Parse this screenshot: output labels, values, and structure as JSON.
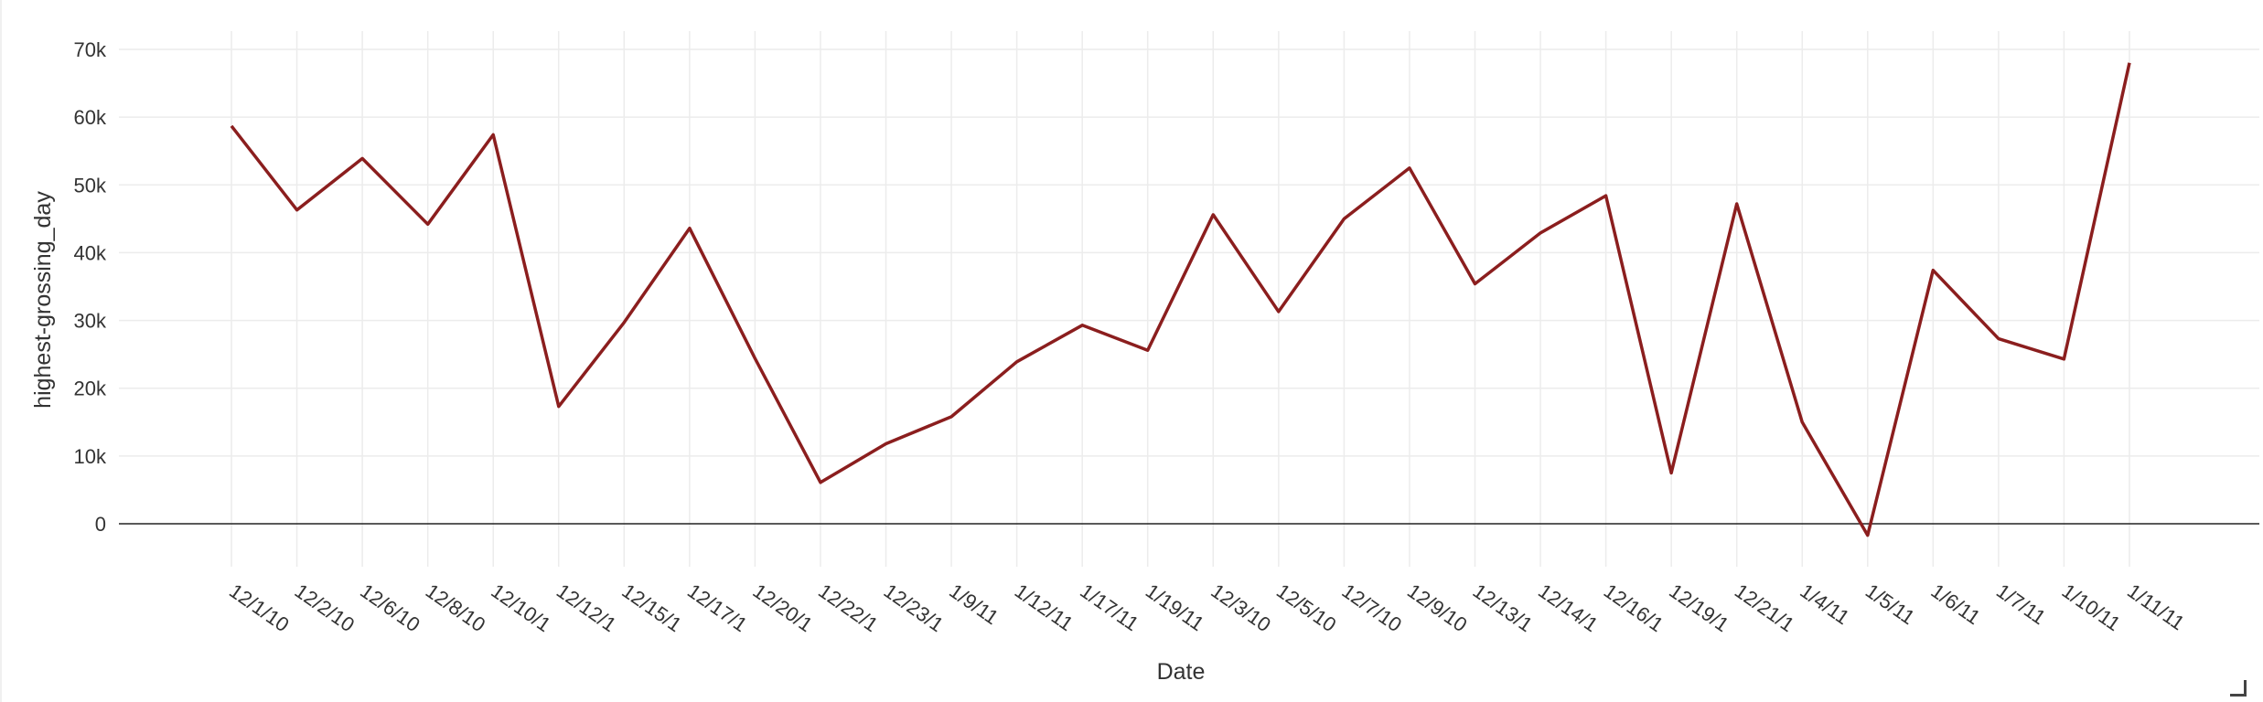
{
  "chart_data": {
    "type": "line",
    "title": "",
    "xlabel": "Date",
    "ylabel": "highest-grossing_day",
    "ylim": [
      -3000,
      72000
    ],
    "yticks": [
      0,
      10000,
      20000,
      30000,
      40000,
      50000,
      60000,
      70000
    ],
    "ytick_labels": [
      "0",
      "10k",
      "20k",
      "30k",
      "40k",
      "50k",
      "60k",
      "70k"
    ],
    "grid": true,
    "legend": "none",
    "line_color": "#8b1e1e",
    "categories": [
      "12/1/10",
      "12/2/10",
      "12/6/10",
      "12/8/10",
      "12/10/1",
      "12/12/1",
      "12/15/1",
      "12/17/1",
      "12/20/1",
      "12/22/1",
      "12/23/1",
      "1/9/11",
      "1/12/11",
      "1/17/11",
      "1/19/11",
      "12/3/10",
      "12/5/10",
      "12/7/10",
      "12/9/10",
      "12/13/1",
      "12/14/1",
      "12/16/1",
      "12/19/1",
      "12/21/1",
      "1/4/11",
      "1/5/11",
      "1/6/11",
      "1/7/11",
      "1/10/11",
      "1/11/11"
    ],
    "values": [
      58700,
      46300,
      53900,
      44200,
      57400,
      17300,
      29700,
      43600,
      24400,
      6100,
      11800,
      15800,
      23900,
      29300,
      25600,
      45600,
      31300,
      45000,
      52500,
      35400,
      42900,
      48400,
      7500,
      47200,
      15000,
      -1700,
      37400,
      27300,
      24300,
      68000
    ]
  }
}
